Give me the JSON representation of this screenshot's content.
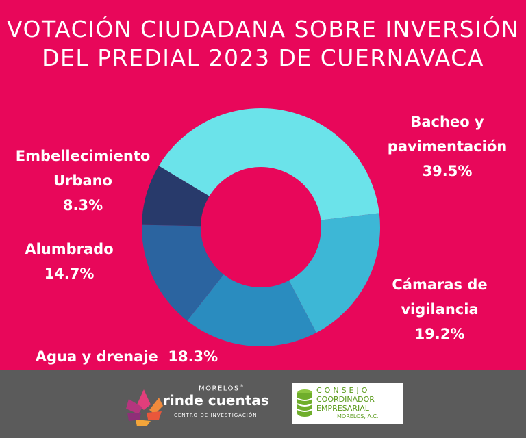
{
  "title": {
    "line1": "VOTACIÓN CIUDADANA SOBRE INVERSIÓN",
    "line2": "DEL PREDIAL 2023 DE CUERNAVACA"
  },
  "chart_data": {
    "type": "pie",
    "title": "VOTACIÓN CIUDADANA SOBRE INVERSIÓN DEL PREDIAL 2023 DE CUERNAVACA",
    "unit": "%",
    "slices": [
      {
        "label_lines": [
          "Bacheo y",
          "pavimentación"
        ],
        "label": "Bacheo y pavimentación",
        "value": 39.5,
        "value_text": "39.5%",
        "color": "#6BE3EA"
      },
      {
        "label_lines": [
          "Cámaras de",
          "vigilancia"
        ],
        "label": "Cámaras de vigilancia",
        "value": 19.2,
        "value_text": "19.2%",
        "color": "#3DB7D6"
      },
      {
        "label_lines": [
          "Agua y drenaje"
        ],
        "label": "Agua y drenaje",
        "value": 18.3,
        "value_text": "18.3%",
        "color": "#2A8CBF"
      },
      {
        "label_lines": [
          "Alumbrado"
        ],
        "label": "Alumbrado",
        "value": 14.7,
        "value_text": "14.7%",
        "color": "#2B64A0"
      },
      {
        "label_lines": [
          "Embellecimiento",
          "Urbano"
        ],
        "label": "Embellecimiento Urbano",
        "value": 8.3,
        "value_text": "8.3%",
        "color": "#283A6B"
      }
    ]
  },
  "footer": {
    "rinde_cuentas": {
      "top": "MORELOS",
      "name": "rinde cuentas",
      "sub": "CENTRO DE INVESTIGACIÓN"
    },
    "consejo": {
      "line1": "CONSEJO",
      "line2": "COORDINADOR",
      "line3": "EMPRESARIAL",
      "line4": "MORELOS, A.C."
    }
  },
  "colors": {
    "background": "#E8075A",
    "footer": "#5B5B5B",
    "text": "#FFFFFF",
    "cce_green": "#5A9A1B"
  }
}
